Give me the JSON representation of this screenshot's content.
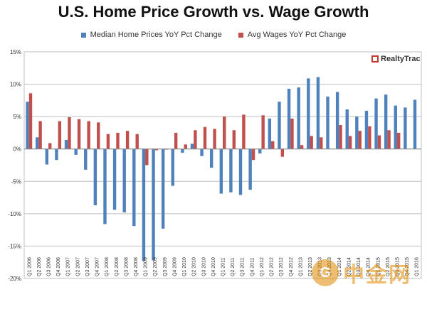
{
  "chart_data": {
    "type": "bar",
    "title": "U.S. Home Price Growth vs. Wage Growth",
    "xlabel": "",
    "ylabel": "",
    "ylim": [
      -20,
      15
    ],
    "y_ticks": [
      "-20%",
      "-15%",
      "-10%",
      "-5%",
      "0%",
      "5%",
      "10%",
      "15%"
    ],
    "y_tick_values": [
      -20,
      -15,
      -10,
      -5,
      0,
      5,
      10,
      15
    ],
    "gridlines": true,
    "legend_position": "top",
    "categories": [
      "Q1 2006",
      "Q2 2006",
      "Q3 2006",
      "Q4 2006",
      "Q1 2007",
      "Q2 2007",
      "Q3 2007",
      "Q4 2007",
      "Q1 2008",
      "Q2 2008",
      "Q3 2008",
      "Q4 2008",
      "Q1 2009",
      "Q2 2009",
      "Q3 2009",
      "Q4 2009",
      "Q1 2010",
      "Q2 2010",
      "Q3 2010",
      "Q4 2010",
      "Q1 2011",
      "Q2 2011",
      "Q3 2011",
      "Q4 2011",
      "Q1 2012",
      "Q2 2012",
      "Q3 2012",
      "Q4 2012",
      "Q1 2013",
      "Q2 2013",
      "Q3 2013",
      "Q4 2013",
      "Q1 2014",
      "Q2 2014",
      "Q3 2014",
      "Q4 2014",
      "Q1 2015",
      "Q2 2015",
      "Q3 2015",
      "Q4 2015",
      "Q1 2016"
    ],
    "series": [
      {
        "name": "Median Home Prices YoY Pct Change",
        "color": "#4f81bd",
        "values": [
          7.3,
          1.8,
          -2.4,
          -1.7,
          1.4,
          -0.9,
          -3.2,
          -8.7,
          -11.6,
          -9.4,
          -9.8,
          -11.9,
          -17.3,
          -17.2,
          -12.3,
          -5.7,
          -0.6,
          0.8,
          -1.1,
          -2.9,
          -6.9,
          -6.7,
          -7.1,
          -6.3,
          -0.7,
          4.7,
          7.3,
          9.3,
          9.5,
          10.9,
          11.1,
          8.1,
          8.8,
          6.1,
          5.0,
          5.9,
          7.8,
          8.4,
          6.7,
          6.4,
          7.6
        ]
      },
      {
        "name": "Avg Wages YoY Pct Change",
        "color": "#c0504d",
        "values": [
          8.6,
          4.3,
          0.9,
          4.3,
          4.9,
          4.6,
          4.3,
          4.1,
          2.3,
          2.5,
          2.8,
          2.3,
          -2.5,
          -0.2,
          -0.1,
          2.5,
          0.7,
          2.9,
          3.4,
          3.1,
          5.0,
          2.9,
          5.3,
          -1.7,
          5.2,
          1.2,
          -1.2,
          4.7,
          0.6,
          2.0,
          1.8,
          0.0,
          3.7,
          2.0,
          2.8,
          3.5,
          2.1,
          2.9,
          2.5,
          0.0,
          0.0
        ]
      }
    ]
  },
  "legend": {
    "items": [
      {
        "label": "Median Home Prices YoY Pct Change",
        "color": "#4f81bd"
      },
      {
        "label": "Avg Wages YoY Pct Change",
        "color": "#c0504d"
      }
    ]
  },
  "brand": {
    "label": "RealtyTrac"
  },
  "watermark": {
    "logo": "G",
    "text": "中金网"
  }
}
